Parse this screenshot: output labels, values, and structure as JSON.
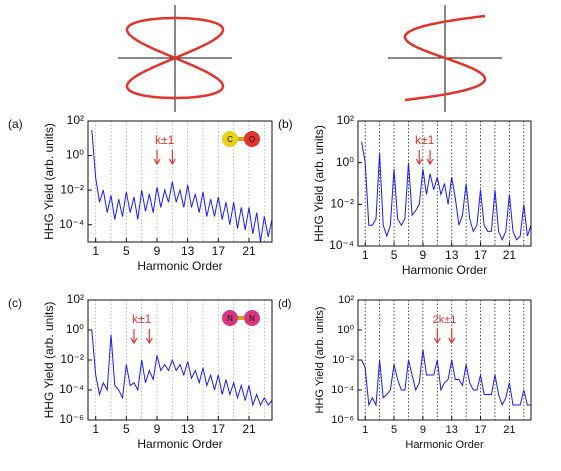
{
  "chart_data": [
    {
      "type": "line",
      "panel_label": "(a)",
      "ylabel": "HHG Yield  (arb. units)",
      "xlabel": "Harmonic Order",
      "log_y": true,
      "color": "#1a1aff",
      "vline_color": "#aaaaaa",
      "vlines": [
        1,
        3,
        5,
        7,
        9,
        11,
        13,
        15,
        17,
        19,
        21,
        23
      ],
      "xlim": [
        0,
        24
      ],
      "xticks": [
        1,
        5,
        9,
        13,
        17,
        21
      ],
      "ylim": [
        1e-05,
        100
      ],
      "yticks": [
        {
          "value": 100,
          "label": "10²"
        },
        {
          "value": 1,
          "label": "10⁰"
        },
        {
          "value": 0.01,
          "label": "10⁻²"
        },
        {
          "value": 0.0001,
          "label": "10⁻⁴"
        }
      ],
      "molecule": [
        "C",
        "O"
      ],
      "molecule_colors": [
        "#e8d11a",
        "#e2342b"
      ],
      "annotations": [
        {
          "text": "k±1",
          "x": [
            9,
            11
          ]
        }
      ],
      "x": [
        0.5,
        1,
        1.5,
        2,
        2.5,
        3,
        3.5,
        4,
        4.5,
        5,
        5.5,
        6,
        6.5,
        7,
        7.5,
        8,
        8.5,
        9,
        9.5,
        10,
        10.5,
        11,
        11.5,
        12,
        12.5,
        13,
        13.5,
        14,
        14.5,
        15,
        15.5,
        16,
        16.5,
        17,
        17.5,
        18,
        18.5,
        19,
        19.5,
        20,
        20.5,
        21,
        21.5,
        22,
        22.5,
        23,
        23.5,
        24
      ],
      "values": [
        30,
        0.05,
        0.002,
        0.01,
        0.0005,
        0.005,
        0.0002,
        0.003,
        0.0003,
        0.008,
        0.0005,
        0.004,
        0.0002,
        0.01,
        0.0006,
        0.006,
        0.0005,
        0.015,
        0.001,
        0.01,
        0.002,
        0.03,
        0.002,
        0.01,
        0.001,
        0.02,
        0.001,
        0.006,
        0.0005,
        0.008,
        0.0003,
        0.003,
        0.0003,
        0.004,
        0.0002,
        0.002,
        0.0001,
        0.002,
        6e-05,
        0.001,
        5e-05,
        0.001,
        3e-05,
        0.0005,
        1e-05,
        0.0003,
        2e-05,
        0.0002
      ]
    },
    {
      "type": "line",
      "panel_label": "(b)",
      "ylabel": "HHG Yield  (arb. units)",
      "xlabel": "Harmonic Order",
      "log_y": true,
      "color": "#1a1aff",
      "vline_color": "#222222",
      "vlines": [
        1,
        3,
        5,
        7,
        9,
        11,
        13,
        15,
        17,
        19,
        21,
        23
      ],
      "xlim": [
        0,
        24
      ],
      "xticks": [
        1,
        5,
        9,
        13,
        17,
        21
      ],
      "ylim": [
        0.0001,
        100
      ],
      "yticks": [
        {
          "value": 100,
          "label": "10²"
        },
        {
          "value": 1,
          "label": "10⁰"
        },
        {
          "value": 0.01,
          "label": "10⁻²"
        },
        {
          "value": 0.0001,
          "label": "10⁻⁴"
        }
      ],
      "annotations": [
        {
          "text": "k±1",
          "x": [
            8.5,
            10
          ]
        }
      ],
      "x": [
        0.5,
        1,
        1.5,
        2,
        2.5,
        3,
        3.5,
        4,
        4.5,
        5,
        5.5,
        6,
        6.5,
        7,
        7.5,
        8,
        8.5,
        9,
        9.5,
        10,
        10.5,
        11,
        11.5,
        12,
        12.5,
        13,
        13.5,
        14,
        14.5,
        15,
        15.5,
        16,
        16.5,
        17,
        17.5,
        18,
        18.5,
        19,
        19.5,
        20,
        20.5,
        21,
        21.5,
        22,
        22.5,
        23,
        23.5,
        24
      ],
      "values": [
        10,
        1,
        0.001,
        0.001,
        0.002,
        3,
        0.001,
        0.0003,
        0.001,
        0.5,
        0.002,
        0.001,
        0.002,
        1,
        0.003,
        0.005,
        0.01,
        0.5,
        0.03,
        0.3,
        0.05,
        0.2,
        0.03,
        0.1,
        0.01,
        0.2,
        0.02,
        0.001,
        0.003,
        0.1,
        0.002,
        0.0005,
        0.001,
        0.05,
        0.001,
        0.0005,
        0.0005,
        0.05,
        0.0005,
        0.0002,
        0.0005,
        0.03,
        0.0005,
        0.0002,
        0.0003,
        0.01,
        0.0003,
        0.001
      ]
    },
    {
      "type": "line",
      "panel_label": "(c)",
      "ylabel": "HHG Yield  (arb. units)",
      "xlabel": "Harmonic Order",
      "log_y": true,
      "color": "#1a1aff",
      "vline_color": "#aaaaaa",
      "vlines": [
        1,
        3,
        5,
        7,
        9,
        11,
        13,
        15,
        17,
        19,
        21,
        23
      ],
      "xlim": [
        0,
        24
      ],
      "xticks": [
        1,
        5,
        9,
        13,
        17,
        21
      ],
      "ylim": [
        1e-06,
        100
      ],
      "yticks": [
        {
          "value": 100,
          "label": "10²"
        },
        {
          "value": 1,
          "label": "10⁰"
        },
        {
          "value": 0.01,
          "label": "10⁻²"
        },
        {
          "value": 0.0001,
          "label": "10⁻⁴"
        },
        {
          "value": 1e-06,
          "label": "10⁻⁶"
        }
      ],
      "molecule": [
        "N",
        "N"
      ],
      "molecule_colors": [
        "#d8357e",
        "#d8357e"
      ],
      "annotations": [
        {
          "text": "k±1",
          "x": [
            6,
            8
          ]
        }
      ],
      "x": [
        0.5,
        1,
        1.5,
        2,
        2.5,
        3,
        3.5,
        4,
        4.5,
        5,
        5.5,
        6,
        6.5,
        7,
        7.5,
        8,
        8.5,
        9,
        9.5,
        10,
        10.5,
        11,
        11.5,
        12,
        12.5,
        13,
        13.5,
        14,
        14.5,
        15,
        15.5,
        16,
        16.5,
        17,
        17.5,
        18,
        18.5,
        19,
        19.5,
        20,
        20.5,
        21,
        21.5,
        22,
        22.5,
        23,
        23.5,
        24
      ],
      "values": [
        1,
        0.001,
        5e-05,
        0.0003,
        0.0001,
        0.5,
        0.0002,
        0.0001,
        3e-05,
        0.005,
        0.0002,
        0.0003,
        0.0001,
        0.01,
        0.0003,
        0.002,
        0.0005,
        0.02,
        0.002,
        0.005,
        0.002,
        0.01,
        0.002,
        0.005,
        0.001,
        0.008,
        0.0006,
        0.002,
        0.0003,
        0.003,
        0.0002,
        0.001,
        0.0001,
        0.001,
        5e-05,
        0.0005,
        5e-05,
        0.0003,
        3e-05,
        0.0002,
        2e-05,
        0.0002,
        1e-05,
        5e-05,
        1e-05,
        3e-05,
        1e-05,
        2e-05
      ]
    },
    {
      "type": "line",
      "panel_label": "(d)",
      "ylabel": "HHG Yield  (arb. units)",
      "xlabel": "Harmonic Order",
      "log_y": true,
      "color": "#1a1aff",
      "vline_color": "#222222",
      "vlines": [
        1,
        3,
        5,
        7,
        9,
        11,
        13,
        15,
        17,
        19,
        21,
        23
      ],
      "xlim": [
        0,
        24
      ],
      "xticks": [
        1,
        5,
        9,
        13,
        17,
        21
      ],
      "ylim": [
        1e-06,
        100
      ],
      "yticks": [
        {
          "value": 100,
          "label": "10²"
        },
        {
          "value": 1,
          "label": "10⁰"
        },
        {
          "value": 0.01,
          "label": "10⁻²"
        },
        {
          "value": 0.0001,
          "label": "10⁻⁴"
        },
        {
          "value": 1e-06,
          "label": "10⁻⁶"
        }
      ],
      "annotations": [
        {
          "text": "2k±1",
          "x": [
            11,
            13
          ]
        }
      ],
      "x": [
        0.5,
        1,
        1.5,
        2,
        2.5,
        3,
        3.5,
        4,
        4.5,
        5,
        5.5,
        6,
        6.5,
        7,
        7.5,
        8,
        8.5,
        9,
        9.5,
        10,
        10.5,
        11,
        11.5,
        12,
        12.5,
        13,
        13.5,
        14,
        14.5,
        15,
        15.5,
        16,
        16.5,
        17,
        17.5,
        18,
        18.5,
        19,
        19.5,
        20,
        20.5,
        21,
        21.5,
        22,
        22.5,
        23,
        23.5,
        24
      ],
      "values": [
        0.01,
        0.003,
        1e-05,
        3e-05,
        1e-05,
        0.01,
        3e-05,
        5e-05,
        0.0001,
        0.005,
        0.0005,
        0.0001,
        0.0001,
        0.01,
        0.001,
        0.0001,
        0.0003,
        0.05,
        0.001,
        0.001,
        0.001,
        0.01,
        0.0001,
        0.0003,
        0.0005,
        0.01,
        0.0005,
        0.0005,
        0.0002,
        0.005,
        0.0003,
        0.0001,
        0.0001,
        0.001,
        5e-05,
        5e-05,
        5e-05,
        0.001,
        5e-05,
        1e-05,
        3e-05,
        0.0003,
        1e-05,
        1e-05,
        1e-05,
        0.0001,
        1e-05,
        1e-05
      ]
    }
  ]
}
